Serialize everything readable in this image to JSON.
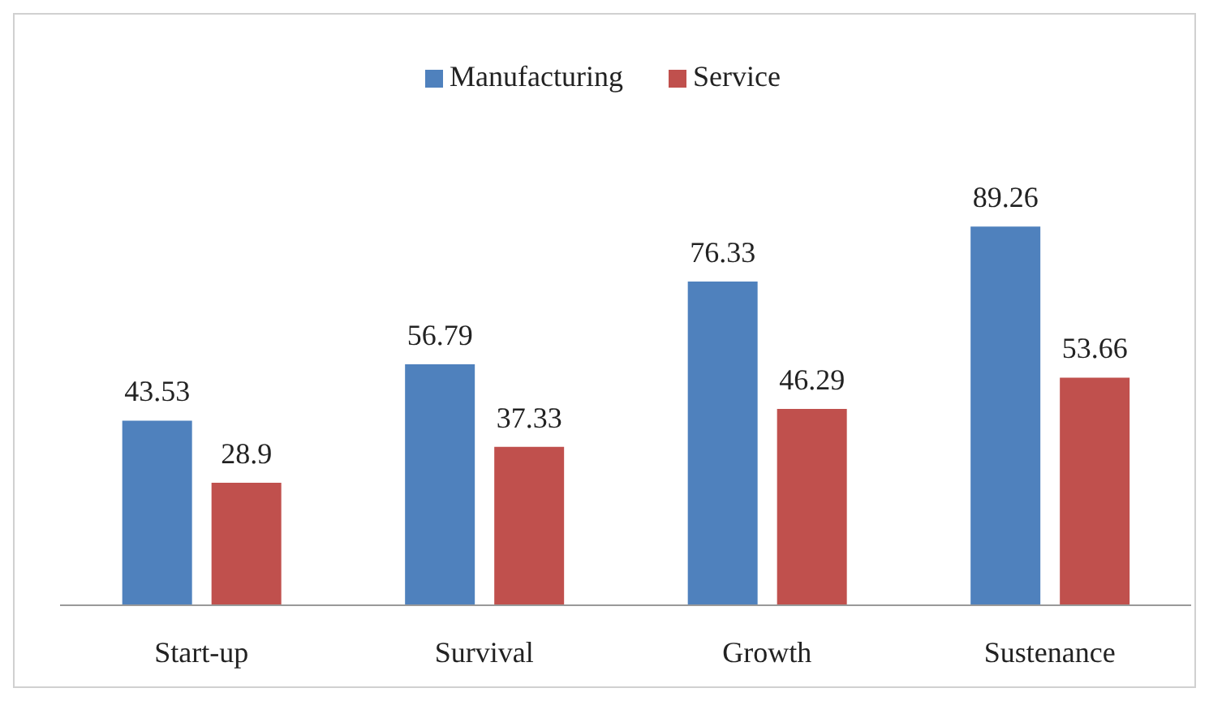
{
  "chart_data": {
    "type": "bar",
    "categories": [
      "Start-up",
      "Survival",
      "Growth",
      "Sustenance"
    ],
    "series": [
      {
        "name": "Manufacturing",
        "color": "#4f81bd",
        "values": [
          43.53,
          56.79,
          76.33,
          89.26
        ]
      },
      {
        "name": "Service",
        "color": "#c0504d",
        "values": [
          28.9,
          37.33,
          46.29,
          53.66
        ]
      }
    ],
    "data_labels": true,
    "legend": "top",
    "grid": false
  }
}
